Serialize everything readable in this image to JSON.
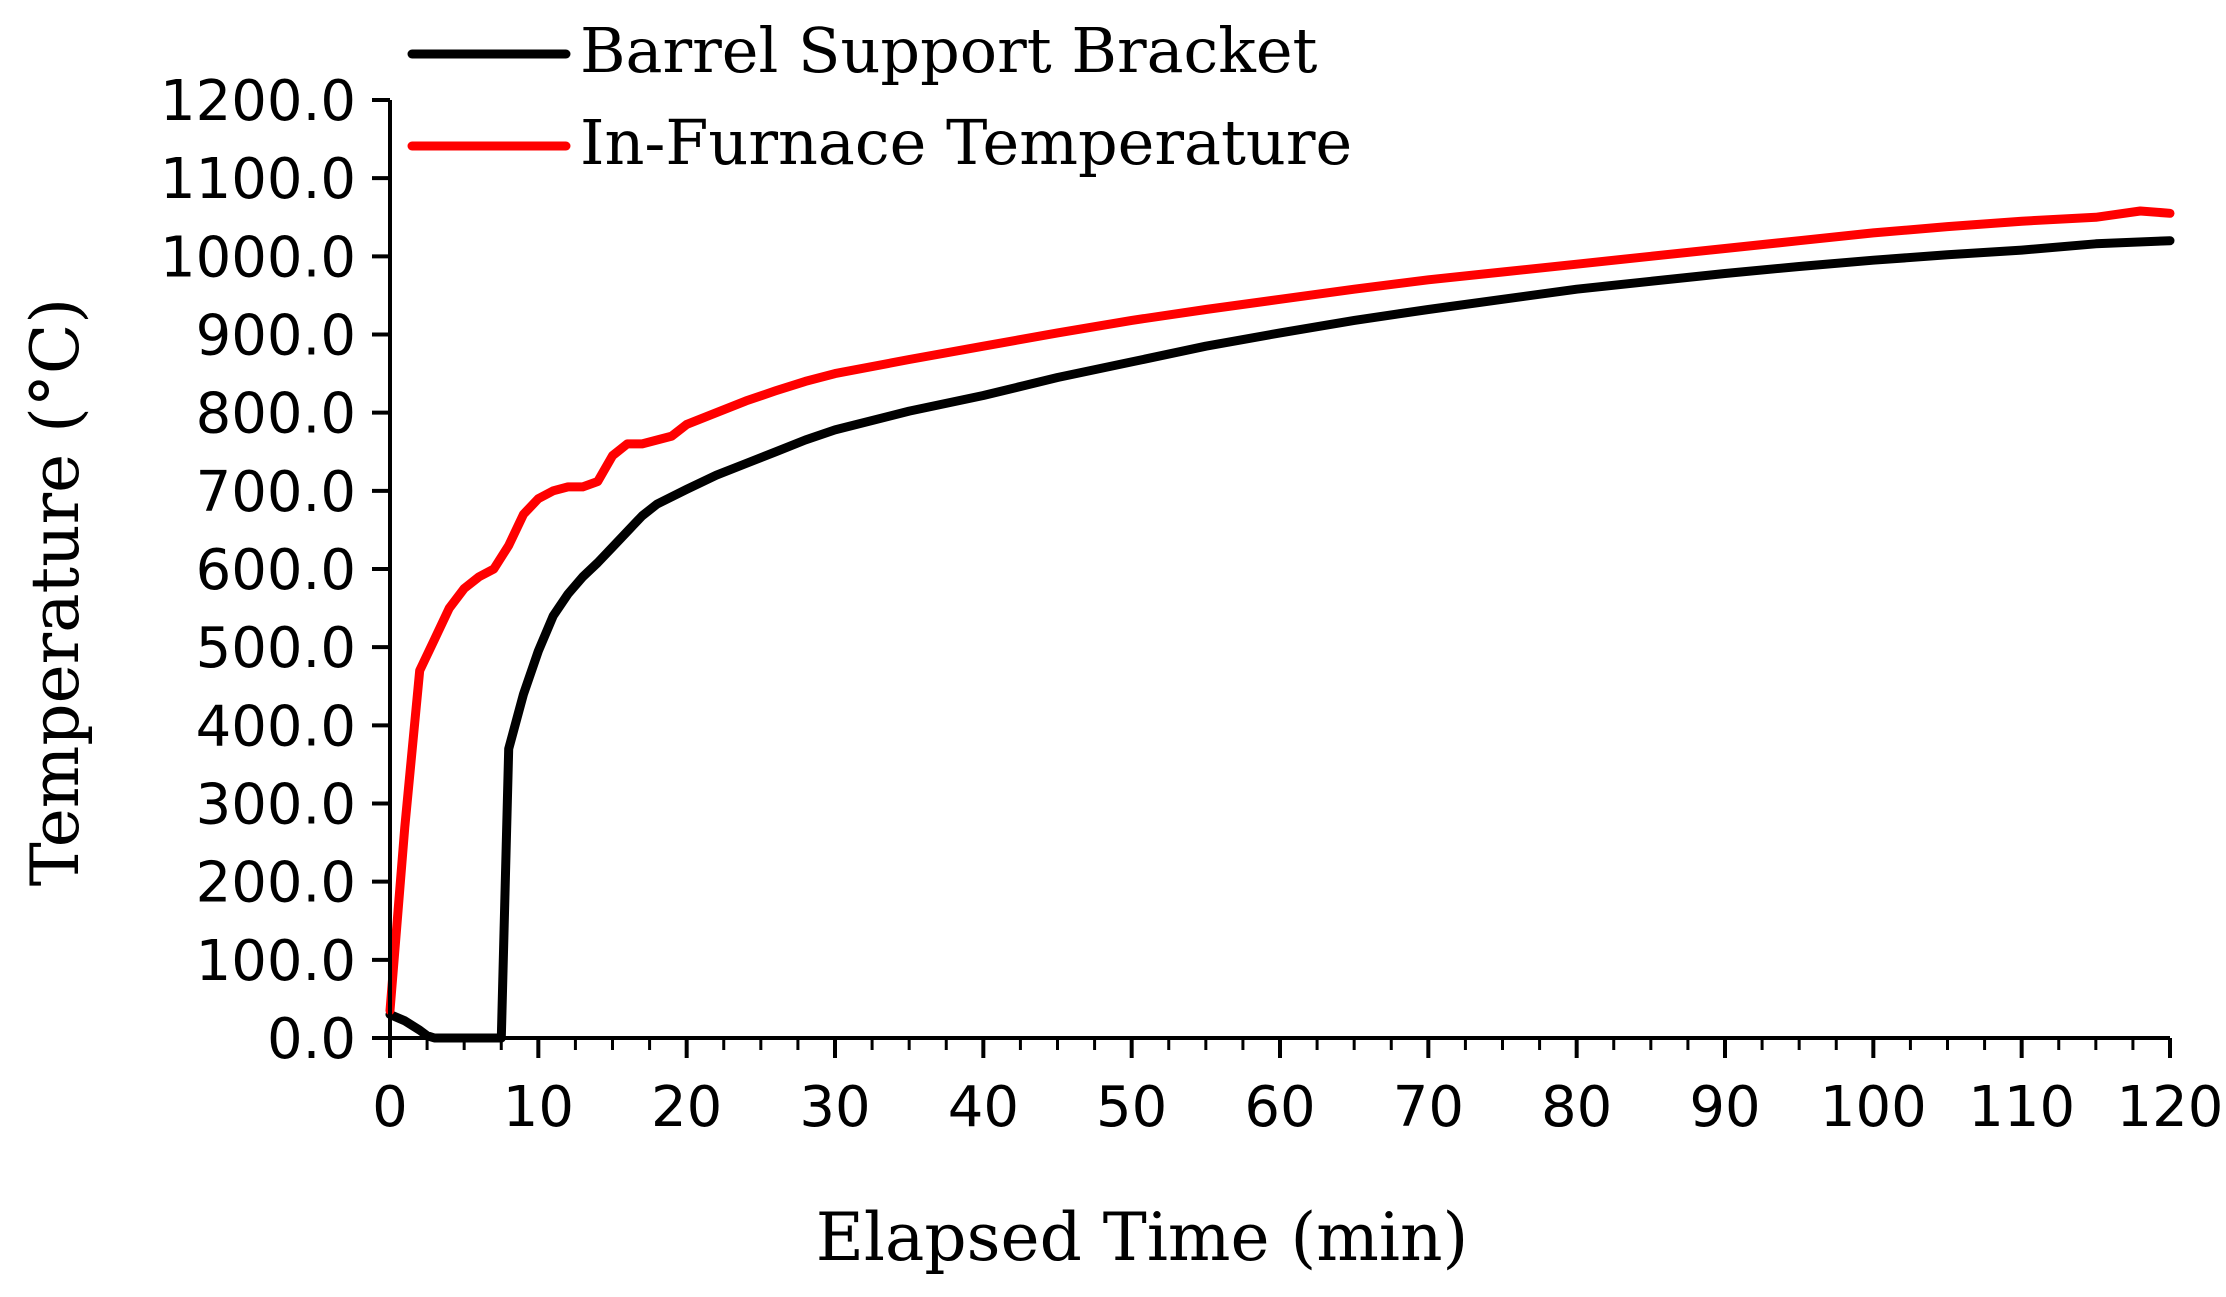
{
  "chart_data": {
    "type": "line",
    "xlabel": "Elapsed Time (min)",
    "ylabel": "Temperature (°C)",
    "xlim": [
      0,
      120
    ],
    "ylim": [
      0,
      1200
    ],
    "x_ticks": [
      0,
      10,
      20,
      30,
      40,
      50,
      60,
      70,
      80,
      90,
      100,
      110,
      120
    ],
    "x_tick_labels": [
      "0",
      "10",
      "20",
      "30",
      "40",
      "50",
      "60",
      "70",
      "80",
      "90",
      "100",
      "110",
      "120"
    ],
    "y_ticks": [
      0,
      100,
      200,
      300,
      400,
      500,
      600,
      700,
      800,
      900,
      1000,
      1100,
      1200
    ],
    "y_tick_labels": [
      "0.0",
      "100.0",
      "200.0",
      "300.0",
      "400.0",
      "500.0",
      "600.0",
      "700.0",
      "800.0",
      "900.0",
      "1000.0",
      "1100.0",
      "1200.0"
    ],
    "grid": false,
    "legend": "top-left",
    "series": [
      {
        "name": "Barrel Support Bracket",
        "color": "#000000",
        "x": [
          0,
          1,
          2,
          2.5,
          3,
          7.5,
          8,
          9,
          10,
          11,
          12,
          13,
          14,
          15,
          16,
          17,
          18,
          20,
          22,
          24,
          26,
          28,
          30,
          35,
          40,
          45,
          50,
          55,
          60,
          65,
          70,
          75,
          80,
          85,
          90,
          95,
          100,
          105,
          110,
          115,
          120
        ],
        "y": [
          30,
          22,
          10,
          3,
          0,
          0,
          370,
          440,
          495,
          540,
          568,
          590,
          608,
          628,
          648,
          668,
          683,
          702,
          720,
          735,
          750,
          765,
          778,
          802,
          822,
          845,
          865,
          885,
          902,
          918,
          932,
          945,
          958,
          968,
          978,
          987,
          995,
          1002,
          1008,
          1016,
          1020
        ]
      },
      {
        "name": "In-Furnace Temperature",
        "color": "#ff0000",
        "x": [
          0,
          1,
          2,
          3,
          4,
          5,
          6,
          7,
          8,
          9,
          10,
          11,
          12,
          13,
          14,
          15,
          16,
          17,
          18,
          19,
          20,
          22,
          24,
          26,
          28,
          30,
          35,
          40,
          45,
          50,
          55,
          60,
          65,
          70,
          75,
          80,
          85,
          90,
          95,
          100,
          105,
          110,
          115,
          118,
          120
        ],
        "y": [
          35,
          270,
          470,
          510,
          550,
          575,
          590,
          600,
          630,
          670,
          690,
          700,
          705,
          705,
          712,
          745,
          760,
          760,
          765,
          770,
          785,
          800,
          815,
          828,
          840,
          850,
          868,
          885,
          902,
          918,
          932,
          945,
          958,
          970,
          980,
          990,
          1000,
          1010,
          1020,
          1030,
          1038,
          1045,
          1050,
          1058,
          1055
        ]
      }
    ]
  }
}
